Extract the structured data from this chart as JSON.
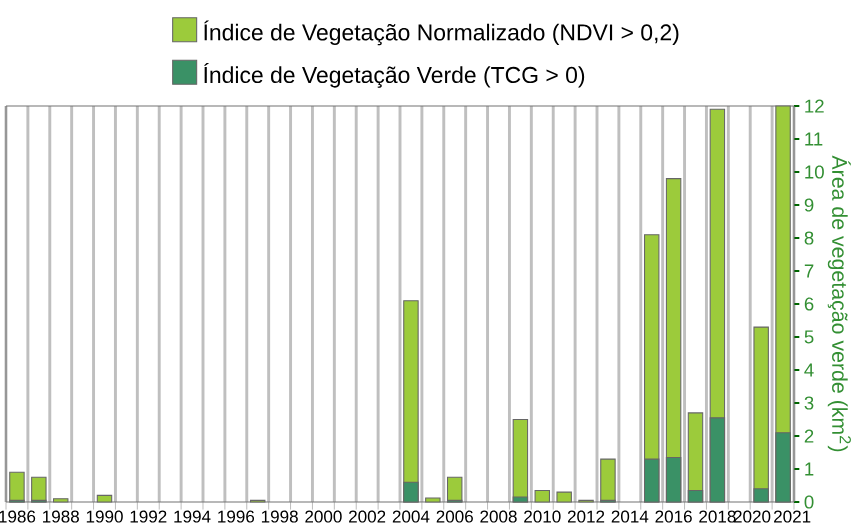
{
  "chart_data": {
    "type": "bar",
    "categories": [
      "1986",
      null,
      "1988",
      null,
      "1990",
      null,
      "1992",
      null,
      "1994",
      null,
      "1996",
      null,
      "1998",
      null,
      "2000",
      null,
      "2002",
      null,
      "2004",
      null,
      "2006",
      null,
      "2008",
      null,
      "2010",
      null,
      "2012",
      null,
      "2014",
      null,
      "2016",
      null,
      "2018",
      null,
      "2020",
      "2021"
    ],
    "series": [
      {
        "name": "Índice de Vegetação Normalizado (NDVI > 0,2)",
        "color": "#9ccb3b",
        "values": [
          0.9,
          0.75,
          0.1,
          null,
          0.2,
          null,
          null,
          null,
          null,
          null,
          null,
          0.05,
          null,
          null,
          null,
          null,
          null,
          null,
          6.1,
          0.12,
          0.75,
          null,
          null,
          2.5,
          0.35,
          0.3,
          0.05,
          1.3,
          null,
          8.1,
          9.8,
          2.7,
          11.9,
          null,
          5.3,
          12
        ]
      },
      {
        "name": "Índice de Vegetação Verde (TCG > 0)",
        "color": "#3a9166",
        "values": [
          0.05,
          0.05,
          null,
          null,
          null,
          null,
          null,
          null,
          null,
          null,
          null,
          null,
          null,
          null,
          null,
          null,
          null,
          null,
          0.6,
          null,
          0.05,
          null,
          null,
          0.15,
          null,
          null,
          null,
          0.05,
          null,
          1.3,
          1.35,
          0.35,
          2.55,
          null,
          0.4,
          2.1
        ]
      }
    ],
    "ylabel": "Área de vegetação verde (km$^{2}$)",
    "ylim": [
      0,
      12
    ],
    "yticks": [
      0,
      1,
      2,
      3,
      4,
      5,
      6,
      7,
      8,
      9,
      10,
      11,
      12
    ],
    "grid": "x",
    "legend": "top"
  }
}
